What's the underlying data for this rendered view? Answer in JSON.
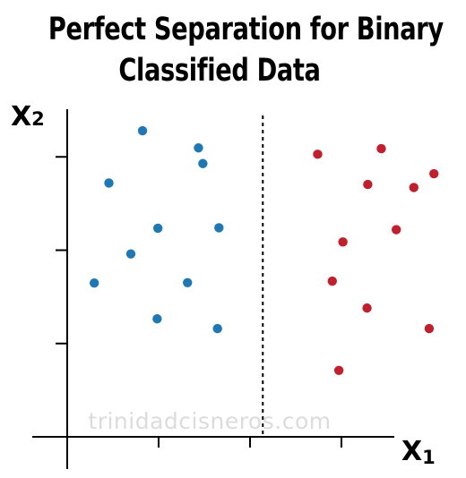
{
  "chart_data": {
    "type": "scatter",
    "title_lines": [
      "Perfect Separation for Binary",
      "Classified Data"
    ],
    "xlabel": "X",
    "xlabel_sub": "1",
    "ylabel": "X",
    "ylabel_sub": "2",
    "xlim": [
      0,
      10
    ],
    "ylim": [
      0,
      10
    ],
    "xticks": [
      2.5,
      5,
      7.5
    ],
    "yticks": [
      2.5,
      5,
      7.5
    ],
    "decision_boundary_x": 5.35,
    "grid": false,
    "series": [
      {
        "color": "#1f77b4",
        "x": [
          2.06,
          1.14,
          2.48,
          3.59,
          3.71,
          1.74,
          0.74,
          2.46,
          3.29,
          4.15,
          4.11
        ],
        "y": [
          8.2,
          6.8,
          5.59,
          7.74,
          7.32,
          4.9,
          4.12,
          3.16,
          4.13,
          5.6,
          2.9
        ]
      },
      {
        "color": "#c0202e",
        "x": [
          6.85,
          8.59,
          8.22,
          10.03,
          7.54,
          9.48,
          9.0,
          7.25,
          8.2,
          9.9,
          7.43
        ],
        "y": [
          7.57,
          7.72,
          6.76,
          7.05,
          5.22,
          6.68,
          5.55,
          4.17,
          3.45,
          2.9,
          1.78
        ]
      }
    ]
  },
  "watermark": "trinidadcisneros.com"
}
